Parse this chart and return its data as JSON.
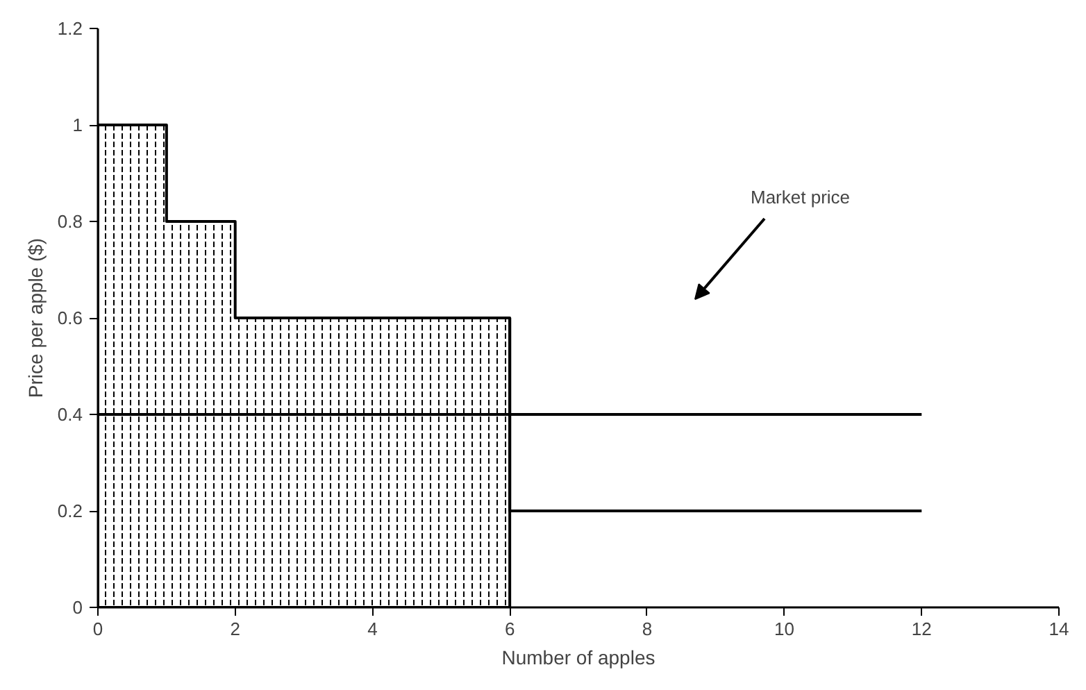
{
  "chart_data": {
    "type": "line",
    "xlabel": "Number of apples",
    "ylabel": "Price per apple ($)",
    "xlim": [
      0,
      14
    ],
    "xticks": [
      0,
      2,
      4,
      6,
      8,
      10,
      12,
      14
    ],
    "ylim": [
      0,
      1.2
    ],
    "yticks": [
      0,
      0.2,
      0.4,
      0.6,
      0.8,
      1,
      1.2
    ],
    "grid": false,
    "marker": "none",
    "line_style": "solid",
    "series": [
      {
        "type": "area",
        "color": "#000000",
        "x": [
          0,
          1,
          1,
          2,
          2,
          6
        ],
        "values": [
          1,
          1,
          0.8,
          0.8,
          0.6,
          0.6
        ]
      },
      {
        "type": "line",
        "color": "#000000",
        "x": [
          6,
          6,
          12
        ],
        "values": [
          0.6,
          0.2,
          0.2
        ]
      },
      {
        "color": "#000000",
        "x": [
          0,
          12
        ],
        "values": [
          0.4,
          0.4
        ]
      }
    ],
    "annotations": [
      "Market price"
    ]
  }
}
